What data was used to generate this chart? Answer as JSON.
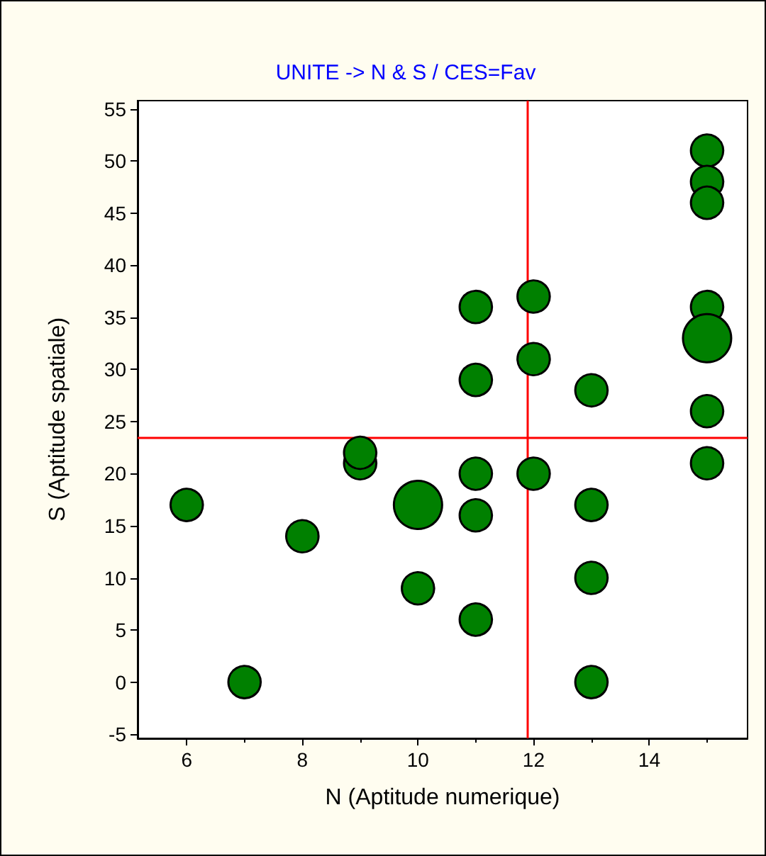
{
  "chart_data": {
    "type": "bubble",
    "title": "UNITE -> N & S / CES=Fav",
    "xlabel": "N (Aptitude numerique)",
    "ylabel": "S (Aptitude spatiale)",
    "x": [
      6,
      7,
      8,
      9,
      9,
      10,
      10,
      11,
      11,
      11,
      11,
      11,
      12,
      12,
      12,
      13,
      13,
      13,
      13,
      15,
      15,
      15,
      15,
      15,
      15,
      15
    ],
    "values": [
      17,
      0,
      14,
      21,
      22,
      17,
      9,
      36,
      29,
      20,
      16,
      6,
      37,
      31,
      20,
      28,
      17,
      10,
      0,
      51,
      48,
      46,
      36,
      33,
      26,
      21
    ],
    "sizes": [
      0.45,
      0.45,
      0.45,
      0.45,
      0.45,
      1,
      0.45,
      0.45,
      0.45,
      0.45,
      0.45,
      0.45,
      0.45,
      0.45,
      0.45,
      0.45,
      0.45,
      0.45,
      0.45,
      0.45,
      0.45,
      0.45,
      0.45,
      1,
      0.45,
      0.45
    ],
    "color": "#008000",
    "xlim": [
      5.15,
      15.7
    ],
    "ylim": [
      -5.4,
      55.8
    ],
    "xticks": [
      6,
      8,
      10,
      12,
      14
    ],
    "yticks": [
      -5,
      0,
      5,
      10,
      15,
      20,
      25,
      30,
      35,
      40,
      45,
      50,
      55
    ],
    "ref_lines": [
      {
        "axis": "x",
        "value": 11.9,
        "color": "#ff0000"
      },
      {
        "axis": "y",
        "value": 23.4,
        "color": "#ff0000"
      }
    ],
    "grid": false,
    "marker": "circle"
  }
}
